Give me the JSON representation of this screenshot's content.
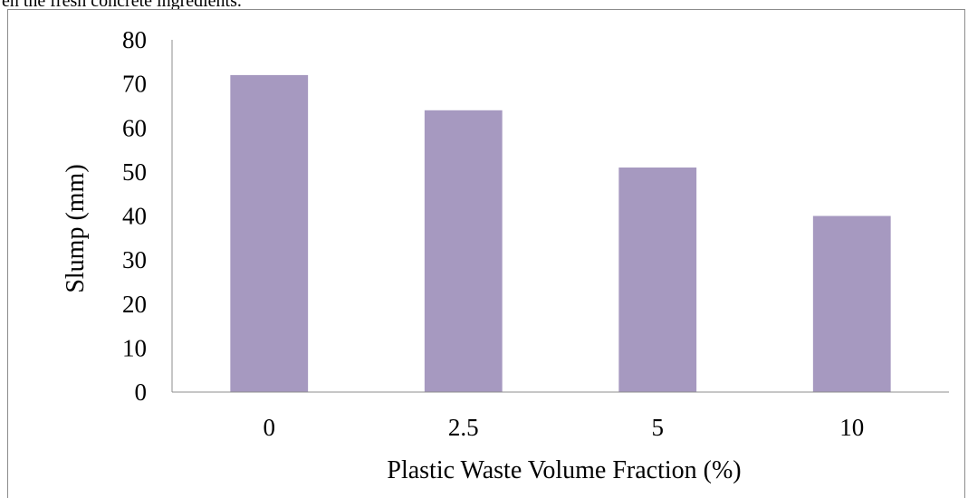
{
  "caption_fragment": "en the fresh concrete ingredients.",
  "chart_data": {
    "type": "bar",
    "categories": [
      "0",
      "2.5",
      "5",
      "10"
    ],
    "values": [
      72,
      64,
      51,
      40
    ],
    "title": "",
    "xlabel": "Plastic Waste Volume Fraction (%)",
    "ylabel": "Slump  (mm)",
    "ylim": [
      0,
      80
    ],
    "yticks": [
      0,
      10,
      20,
      30,
      40,
      50,
      60,
      70,
      80
    ],
    "grid": false,
    "legend": "none",
    "bar_color": "#a699c0"
  }
}
